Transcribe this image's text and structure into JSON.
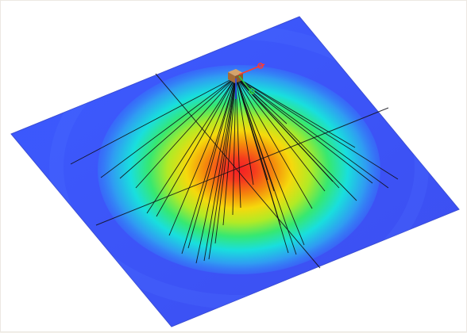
{
  "viewport": {
    "kind": "3d-simulation-view",
    "description_visible_text": "",
    "plate": {
      "base_color": "#3a55ff",
      "edge_color": "#3b4ed6"
    },
    "heatmap": {
      "colormap": [
        "#3a55ff",
        "#2f9ff2",
        "#17e6dc",
        "#36f06a",
        "#b8f21a",
        "#ffe100",
        "#ff7a00",
        "#ff1a1a"
      ],
      "peak_color": "#ff2222"
    },
    "source": {
      "body_color": "#b07a45",
      "axis_colors": {
        "x": "#ff3b30",
        "y": "#2ad14a",
        "z": "#2b4bff"
      }
    },
    "rays": {
      "color": "#0e0e12",
      "count": 34
    },
    "grid": {
      "color": "#101018",
      "lines": 2
    }
  }
}
